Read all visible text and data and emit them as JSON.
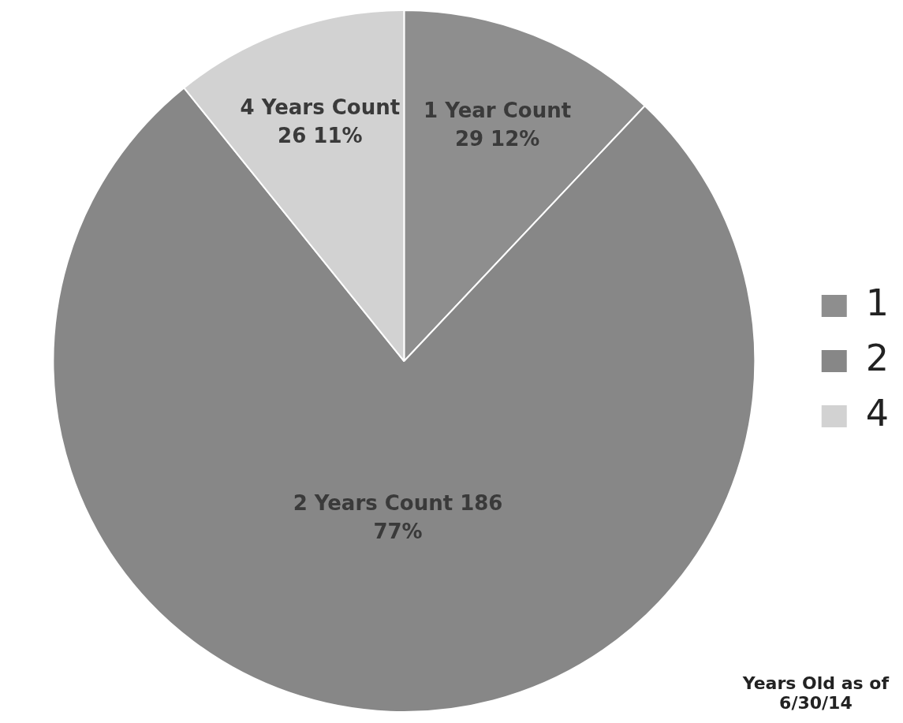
{
  "chart_data": {
    "type": "pie",
    "categories": [
      "1",
      "2",
      "4"
    ],
    "values": [
      29,
      186,
      26
    ],
    "colors": [
      "#8e8e8e",
      "#878787",
      "#d2d2d2"
    ],
    "value_labels": [
      "1 Year Count\n29 12%",
      "2 Years Count 186\n77%",
      "4 Years Count\n26 11%"
    ],
    "legend": "right",
    "annotations": [
      "Years Old as of\n6/30/14"
    ]
  }
}
